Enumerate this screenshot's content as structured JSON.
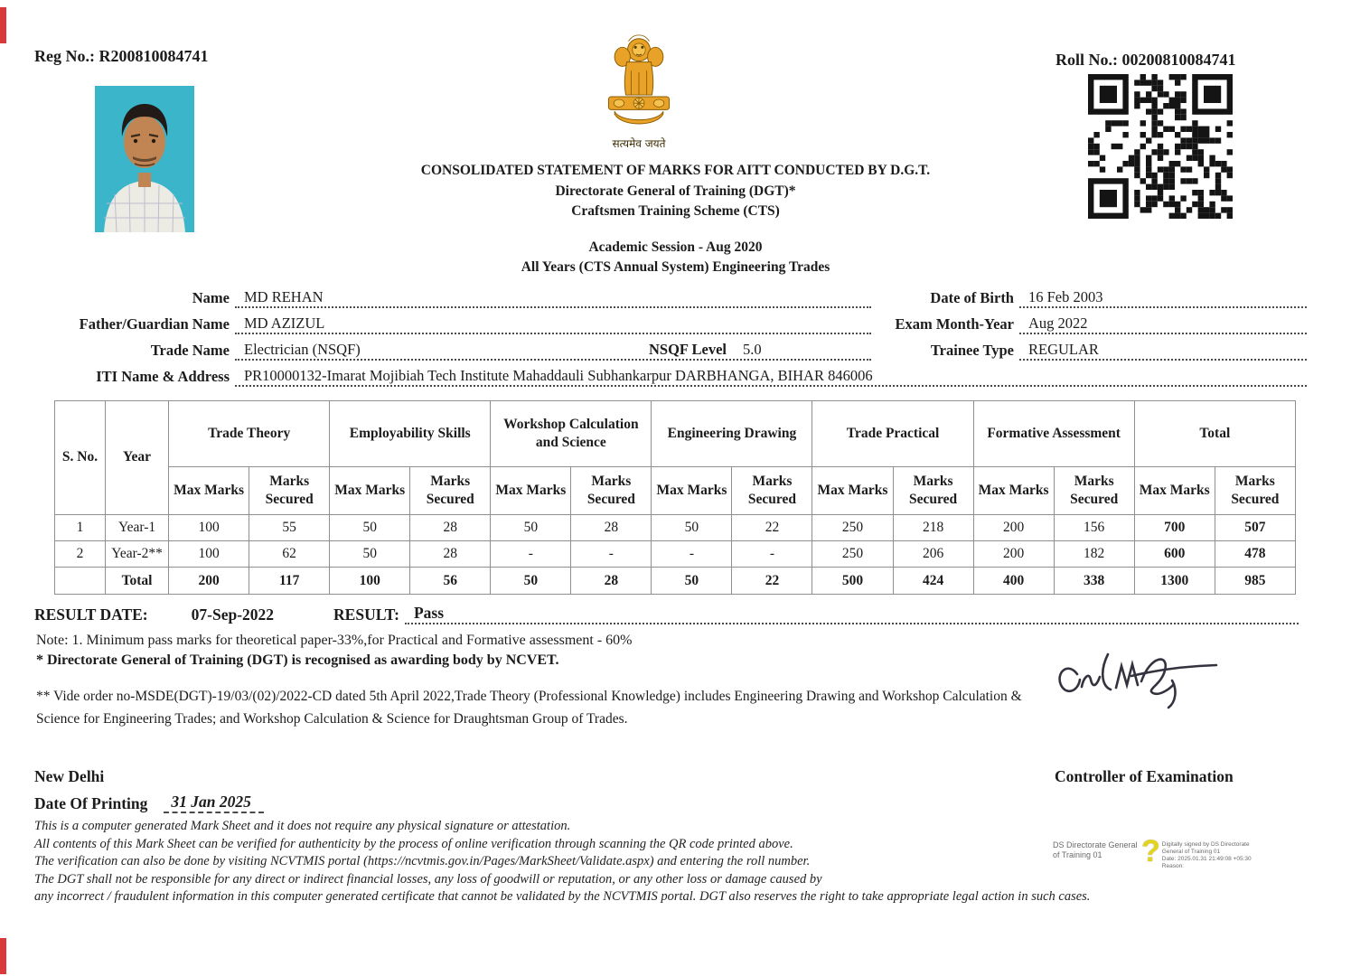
{
  "header": {
    "reg_no_label": "Reg No.:",
    "reg_no": "R200810084741",
    "roll_no_label": "Roll No.:",
    "roll_no": "00200810084741",
    "emblem_caption": "सत्यमेव जयते",
    "title1": "CONSOLIDATED STATEMENT OF MARKS FOR AITT CONDUCTED BY D.G.T.",
    "title2": "Directorate General of Training (DGT)*",
    "title3": "Craftsmen Training Scheme (CTS)",
    "session1": "Academic Session - Aug 2020",
    "session2": "All Years (CTS Annual System) Engineering Trades"
  },
  "fields": {
    "name_label": "Name",
    "name": "MD REHAN",
    "father_label": "Father/Guardian Name",
    "father": "MD AZIZUL",
    "trade_label": "Trade Name",
    "trade": "Electrician (NSQF)",
    "nsqf_label": "NSQF Level",
    "nsqf": "5.0",
    "iti_label": "ITI Name & Address",
    "iti": "PR10000132-Imarat Mojibiah Tech Institute Mahaddauli Subhankarpur DARBHANGA, BIHAR 846006",
    "dob_label": "Date of Birth",
    "dob": "16 Feb 2003",
    "exam_label": "Exam Month-Year",
    "exam": "Aug 2022",
    "trainee_label": "Trainee Type",
    "trainee": "REGULAR"
  },
  "marks_table": {
    "sno_header": "S. No.",
    "year_header": "Year",
    "max_header": "Max Marks",
    "secured_header": "Marks Secured",
    "groups": [
      "Trade Theory",
      "Employability Skills",
      "Workshop Calculation and Science",
      "Engineering Drawing",
      "Trade Practical",
      "Formative Assessment",
      "Total"
    ],
    "rows": [
      {
        "sno": "1",
        "year": "Year-1",
        "cells": [
          "100",
          "55",
          "50",
          "28",
          "50",
          "28",
          "50",
          "22",
          "250",
          "218",
          "200",
          "156",
          "700",
          "507"
        ]
      },
      {
        "sno": "2",
        "year": "Year-2**",
        "cells": [
          "100",
          "62",
          "50",
          "28",
          "-",
          "-",
          "-",
          "-",
          "250",
          "206",
          "200",
          "182",
          "600",
          "478"
        ]
      }
    ],
    "total": {
      "sno": "",
      "year": "Total",
      "cells": [
        "200",
        "117",
        "100",
        "56",
        "50",
        "28",
        "50",
        "22",
        "500",
        "424",
        "400",
        "338",
        "1300",
        "985"
      ]
    }
  },
  "result": {
    "date_label": "RESULT DATE:",
    "date": "07-Sep-2022",
    "result_label": "RESULT:",
    "result": "Pass"
  },
  "notes": {
    "note1": "Note: 1. Minimum pass marks for theoretical paper-33%,for Practical and Formative assessment - 60%",
    "note2": "* Directorate General of Training (DGT) is recognised as awarding body by NCVET.",
    "vide": "** Vide order no-MSDE(DGT)-19/03/(02)/2022-CD dated 5th April 2022,Trade Theory (Professional Knowledge) includes Engineering Drawing and Workshop Calculation & Science for Engineering Trades; and Workshop Calculation & Science for Draughtsman Group of Trades."
  },
  "footer": {
    "place": "New Delhi",
    "printing_label": "Date Of Printing",
    "printing_date": "31 Jan 2025",
    "controller": "Controller of Examination",
    "disclaimer": [
      "This is a computer generated Mark Sheet and it does not require any physical signature or attestation.",
      "All contents of this Mark Sheet can be verified for authenticity by the process of online verification through scanning the QR code printed above.",
      "The verification can also be done by visiting NCVTMIS portal (https://ncvtmis.gov.in/Pages/MarkSheet/Validate.aspx) and entering the roll number.",
      "The DGT shall not be responsible for any direct or indirect financial losses, any loss of goodwill or reputation, or any other loss or damage caused by",
      "any incorrect / fraudulent information in this computer generated certificate that cannot be validated by the NCVTMIS portal. DGT also reserves the right to take appropriate legal action in such cases."
    ],
    "ds_name_line1": "DS Directorate General",
    "ds_name_line2": "of Training 01",
    "ds_details": [
      "Digitally signed by DS Directorate",
      "General of Training 01",
      "Date: 2025.01.31 21:49:08 +05:30",
      "Reason:"
    ]
  },
  "colors": {
    "emblem_gold": "#E8A227",
    "photo_bg": "#3AB5C9",
    "accent_red": "#D93A3A",
    "qr_black": "#141414"
  }
}
